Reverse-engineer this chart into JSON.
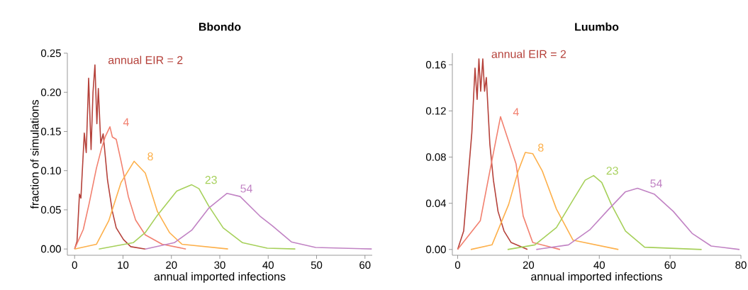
{
  "chart_data": [
    {
      "type": "line",
      "title": "Bbondo",
      "xlabel": "annual imported infections",
      "ylabel": "fraction of simulations",
      "xlim": [
        -1.5,
        61.5
      ],
      "ylim": [
        -0.008,
        0.25
      ],
      "xticks": [
        0,
        10,
        20,
        30,
        40,
        50,
        60
      ],
      "yticks": [
        {
          "value": 0,
          "label": "0.00"
        },
        {
          "value": 0.05,
          "label": "0.05"
        },
        {
          "value": 0.1,
          "label": "0.10"
        },
        {
          "value": 0.15,
          "label": "0.15"
        },
        {
          "value": 0.2,
          "label": "0.20"
        },
        {
          "value": 0.25,
          "label": "0.25"
        }
      ],
      "grid": false,
      "legend": false,
      "marker": "none",
      "line_style": "solid",
      "series": [
        {
          "name": "annual EIR = 2",
          "color": "#b5413a",
          "x": [
            0,
            0.5,
            1.0,
            1.3,
            2.0,
            2.4,
            2.9,
            3.4,
            3.8,
            4.2,
            4.6,
            4.9,
            5.4,
            5.9,
            6.3,
            6.8,
            7.8,
            8.6,
            10.1,
            11.6,
            14.6
          ],
          "values": [
            0,
            0.01,
            0.07,
            0.065,
            0.148,
            0.123,
            0.218,
            0.127,
            0.2,
            0.235,
            0.16,
            0.205,
            0.135,
            0.147,
            0.121,
            0.088,
            0.048,
            0.027,
            0.012,
            0.003,
            0
          ]
        },
        {
          "name": "4",
          "color": "#f2806f",
          "x": [
            0,
            1.8,
            3.0,
            4.5,
            5.5,
            6.3,
            7.3,
            7.8,
            8.6,
            9.6,
            11.1,
            12.6,
            14.6,
            18.1,
            23
          ],
          "values": [
            0,
            0.025,
            0.058,
            0.103,
            0.127,
            0.143,
            0.156,
            0.143,
            0.14,
            0.112,
            0.067,
            0.037,
            0.018,
            0.006,
            0
          ]
        },
        {
          "name": "8",
          "color": "#fdb04b",
          "x": [
            0,
            4.5,
            7.05,
            9.6,
            12.3,
            14.6,
            17.1,
            19.6,
            22.2,
            31.7
          ],
          "values": [
            0,
            0.006,
            0.036,
            0.085,
            0.112,
            0.097,
            0.048,
            0.021,
            0.006,
            0
          ]
        },
        {
          "name": "23",
          "color": "#a6d05a",
          "x": [
            5.0,
            12.1,
            14.6,
            17.1,
            21.1,
            24.2,
            25.7,
            27.7,
            30.7,
            34.7,
            39.8,
            45.6
          ],
          "values": [
            0,
            0.008,
            0.021,
            0.043,
            0.074,
            0.082,
            0.077,
            0.055,
            0.027,
            0.008,
            0.001,
            0
          ]
        },
        {
          "name": "54",
          "color": "#c183c4",
          "x": [
            14.6,
            20.6,
            24.2,
            27.7,
            31.5,
            34.2,
            38.3,
            40.8,
            44.8,
            49.8,
            61.4
          ],
          "values": [
            0,
            0.008,
            0.024,
            0.052,
            0.071,
            0.067,
            0.042,
            0.03,
            0.009,
            0.002,
            0
          ]
        }
      ]
    },
    {
      "type": "line",
      "title": "Luumbo",
      "xlabel": "annual imported infections",
      "xlim": [
        -1.5,
        80
      ],
      "ylim": [
        -0.005,
        0.17
      ],
      "xticks": [
        0,
        20,
        40,
        60,
        80
      ],
      "yticks": [
        {
          "value": 0,
          "label": "0.00"
        },
        {
          "value": 0.04,
          "label": "0.04"
        },
        {
          "value": 0.08,
          "label": "0.08"
        },
        {
          "value": 0.12,
          "label": "0.12"
        },
        {
          "value": 0.16,
          "label": "0.16"
        }
      ],
      "grid": false,
      "legend": false,
      "marker": "none",
      "line_style": "solid",
      "series": [
        {
          "name": "annual EIR = 2",
          "color": "#b5413a",
          "x": [
            0,
            1.7,
            3.0,
            4.0,
            4.9,
            5.5,
            6.0,
            6.5,
            7.1,
            7.6,
            8.1,
            9.1,
            10.1,
            11.4,
            13.1,
            15.1,
            19.7
          ],
          "values": [
            0,
            0.016,
            0.064,
            0.101,
            0.157,
            0.13,
            0.165,
            0.137,
            0.165,
            0.137,
            0.149,
            0.091,
            0.06,
            0.033,
            0.016,
            0.006,
            0
          ]
        },
        {
          "name": "4",
          "color": "#f2806f",
          "x": [
            0,
            6.4,
            9.1,
            12.1,
            16.5,
            18.5,
            21.2,
            28.9
          ],
          "values": [
            0,
            0.025,
            0.068,
            0.115,
            0.074,
            0.029,
            0.006,
            0
          ]
        },
        {
          "name": "8",
          "color": "#fdb04b",
          "x": [
            3.7,
            9.7,
            14.4,
            17.1,
            19.1,
            21.2,
            23.9,
            27.9,
            32.6,
            45.4
          ],
          "values": [
            0,
            0.004,
            0.039,
            0.068,
            0.084,
            0.083,
            0.068,
            0.035,
            0.008,
            0
          ]
        },
        {
          "name": "23",
          "color": "#a6d05a",
          "x": [
            14.1,
            21.8,
            27.9,
            32.6,
            36.0,
            38.4,
            40.7,
            43.4,
            47.4,
            52.8,
            68.9
          ],
          "values": [
            0,
            0.004,
            0.019,
            0.043,
            0.06,
            0.064,
            0.058,
            0.039,
            0.016,
            0.002,
            0
          ]
        },
        {
          "name": "54",
          "color": "#c183c4",
          "x": [
            22.2,
            31.3,
            37.3,
            42.7,
            47.4,
            50.8,
            55.5,
            60.9,
            66.2,
            71.6,
            79.6
          ],
          "values": [
            0,
            0.004,
            0.017,
            0.035,
            0.05,
            0.053,
            0.048,
            0.033,
            0.014,
            0.003,
            0
          ]
        }
      ]
    }
  ]
}
